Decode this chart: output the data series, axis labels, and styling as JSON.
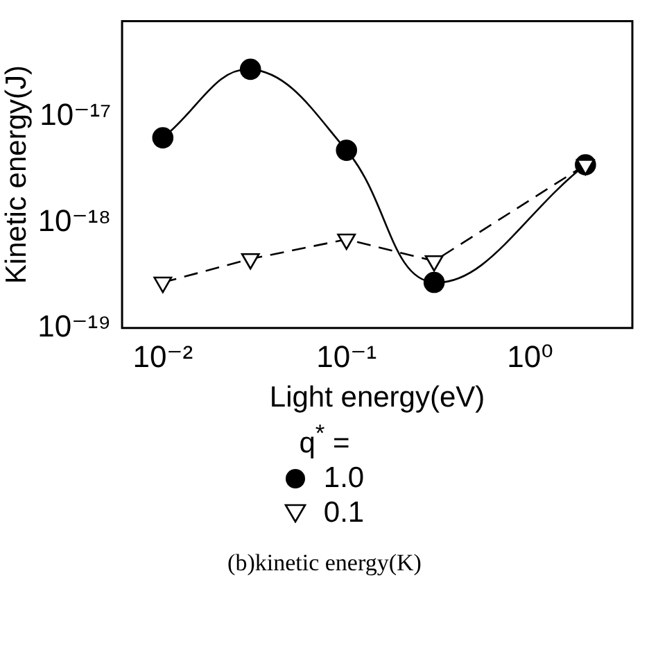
{
  "chart_data": {
    "type": "line",
    "xlabel": "Light energy(eV)",
    "ylabel": "Kinetic energy(J)",
    "legend_title": "q$^{*}$ =",
    "annotations": [
      "(b)kinetic energy(K)"
    ],
    "log": "xy",
    "xlim": [
      0.006,
      3.6
    ],
    "ylim": [
      1e-19,
      8e-17
    ],
    "xticks": [
      {
        "value": 0.01,
        "label": "10⁻²"
      },
      {
        "value": 0.1,
        "label": "10⁻¹"
      },
      {
        "value": 1,
        "label": "10⁰"
      }
    ],
    "yticks": [
      {
        "value": 1e-19,
        "label": "10⁻¹⁹"
      },
      {
        "value": 1e-18,
        "label": "10⁻¹⁸"
      },
      {
        "value": 1e-17,
        "label": "10⁻¹⁷"
      }
    ],
    "grid": false,
    "legend": "bottom",
    "series": [
      {
        "name": "1.0",
        "color": "#000000",
        "marker": "circle",
        "line_style": "solid",
        "x": [
          0.01,
          0.03,
          0.1,
          0.3,
          2
        ],
        "values": [
          6.3e-18,
          2.8e-17,
          4.8e-18,
          2.7e-19,
          3.5e-18
        ]
      },
      {
        "name": "0.1",
        "color": "#000000",
        "marker": "triangle",
        "line_style": "dashed",
        "x": [
          0.01,
          0.03,
          0.1,
          0.3,
          2
        ],
        "values": [
          2.7e-19,
          4.5e-19,
          6.9e-19,
          4.3e-19,
          3.5e-18
        ]
      }
    ]
  }
}
